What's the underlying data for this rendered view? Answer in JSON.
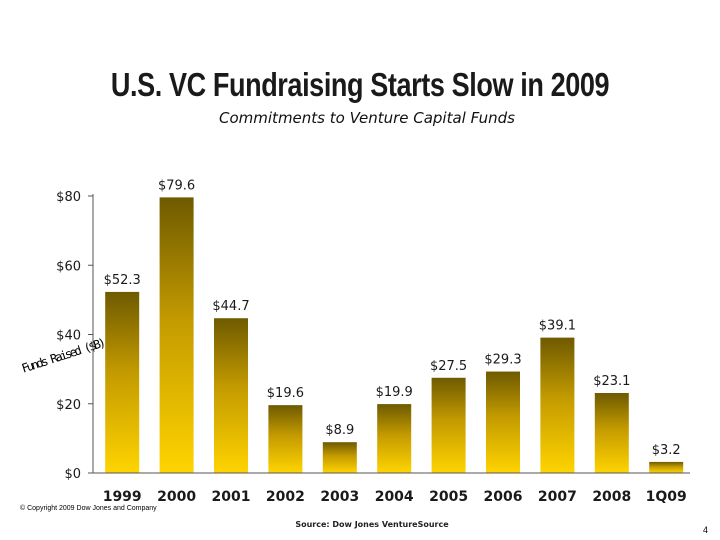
{
  "title": "U.S. VC Fundraising Starts Slow in 2009",
  "subtitle": "Commitments to Venture Capital Funds",
  "copyright": "© Copyright 2009 Dow Jones and Company",
  "source": "Source: Dow Jones VentureSource",
  "page_number": "4",
  "colors": {
    "bar_top": "#6e5a00",
    "bar_mid": "#c49b00",
    "bar_bottom": "#ffd400",
    "text": "#1a1a1a",
    "axis": "#555555"
  },
  "chart_data": {
    "type": "bar",
    "title": "U.S. VC Fundraising Starts Slow in 2009",
    "subtitle": "Commitments to Venture Capital Funds",
    "xlabel": "",
    "ylabel": "Funds Raised ($B)",
    "ylim": [
      0,
      80
    ],
    "yticks": [
      0,
      20,
      40,
      60,
      80
    ],
    "ytick_labels": [
      "$0",
      "$20",
      "$40",
      "$60",
      "$80"
    ],
    "grid": false,
    "categories": [
      "1999",
      "2000",
      "2001",
      "2002",
      "2003",
      "2004",
      "2005",
      "2006",
      "2007",
      "2008",
      "1Q09"
    ],
    "values": [
      52.3,
      79.6,
      44.7,
      19.6,
      8.9,
      19.9,
      27.5,
      29.3,
      39.1,
      23.1,
      3.2
    ],
    "data_labels": [
      "$52.3",
      "$79.6",
      "$44.7",
      "$19.6",
      "$8.9",
      "$19.9",
      "$27.5",
      "$29.3",
      "$39.1",
      "$23.1",
      "$3.2"
    ]
  }
}
